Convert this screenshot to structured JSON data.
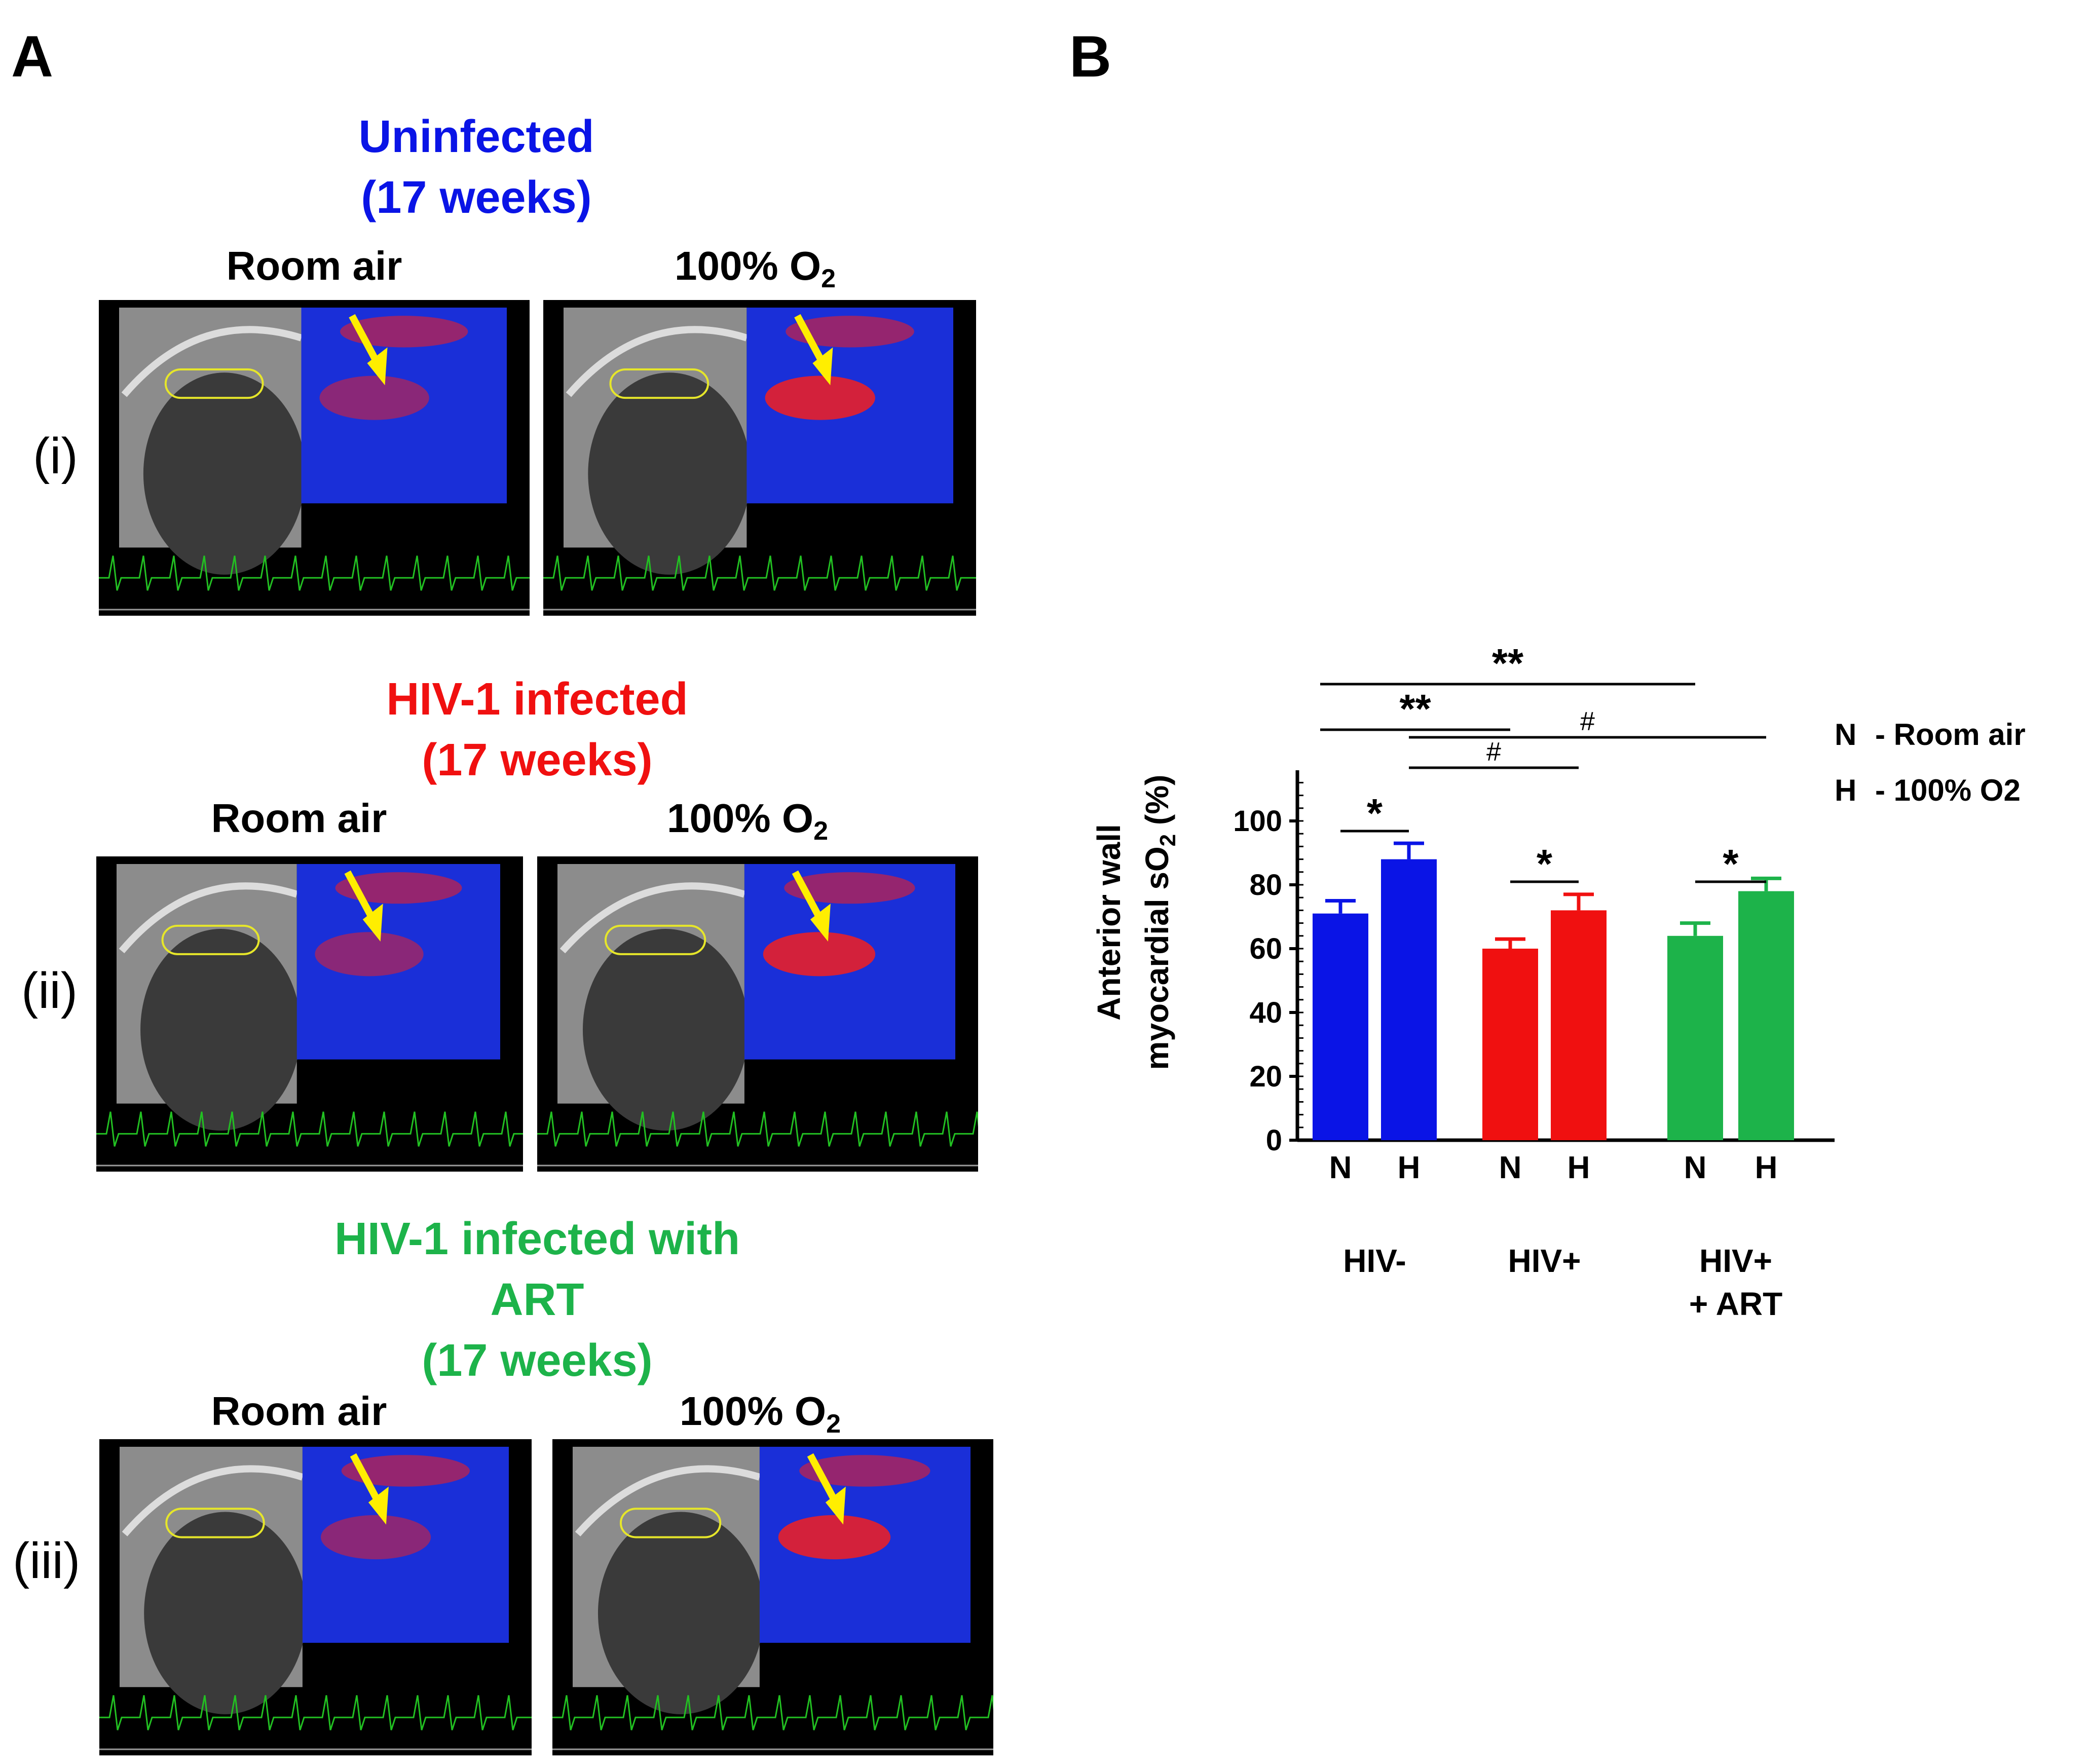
{
  "panelA": {
    "letter": "A",
    "groups": [
      {
        "title_line1": "Uninfected",
        "title_line2": "(17 weeks)",
        "title_line3": "",
        "color": "#0a14e6",
        "row_label": "(i)",
        "left_label": "Room air",
        "right_label_main": "100% O",
        "right_label_sub": "2"
      },
      {
        "title_line1": "HIV-1 infected",
        "title_line2": "(17 weeks)",
        "title_line3": "",
        "color": "#f01010",
        "row_label": "(ii)",
        "left_label": "Room air",
        "right_label_main": "100% O",
        "right_label_sub": "2"
      },
      {
        "title_line1": "HIV-1 infected with",
        "title_line2": "ART",
        "title_line3": "(17 weeks)",
        "color": "#1db34a",
        "row_label": "(iii)",
        "left_label": "Room air",
        "right_label_main": "100% O",
        "right_label_sub": "2"
      }
    ],
    "image_colors": {
      "background": "#000000",
      "ultrasound": "#8c8c8c",
      "oxygen_high": "#e8202a",
      "oxygen_low": "#1a2fd8",
      "roi_outline": "#e6e62a",
      "arrow": "#ffee00",
      "ecg": "#22c022"
    }
  },
  "panelB": {
    "letter": "B",
    "chart_data": {
      "type": "bar",
      "ylabel_line1": "Anterior wall",
      "ylabel_line2_main": "myocardial sO",
      "ylabel_line2_sub": "2",
      "ylabel_line2_tail": " (%)",
      "ylim": [
        0,
        100
      ],
      "yticks": [
        "0",
        "20",
        "40",
        "60",
        "80",
        "100"
      ],
      "categories": [
        "N",
        "H",
        "N",
        "H",
        "N",
        "H"
      ],
      "groups": [
        {
          "label_line1": "HIV-",
          "label_line2": "",
          "color": "#0a14e6"
        },
        {
          "label_line1": "HIV+",
          "label_line2": "",
          "color": "#f01010"
        },
        {
          "label_line1": "HIV+",
          "label_line2": "+ ART",
          "color": "#1db34a"
        }
      ],
      "values": [
        71,
        88,
        60,
        72,
        64,
        78
      ],
      "errors": [
        4,
        5,
        3,
        5,
        4,
        4
      ],
      "legend": [
        {
          "key": "N",
          "text": "- Room air"
        },
        {
          "key": "H",
          "text": "- 100% O2"
        }
      ],
      "significance": [
        {
          "from": 0,
          "to": 1,
          "label": "*"
        },
        {
          "from": 2,
          "to": 3,
          "label": "*"
        },
        {
          "from": 4,
          "to": 5,
          "label": "*"
        },
        {
          "from": 1,
          "to": 3,
          "label": "#"
        },
        {
          "from": 1,
          "to": 5,
          "label": "#"
        },
        {
          "from": 0,
          "to": 2,
          "label": "**"
        },
        {
          "from": 0,
          "to": 4,
          "label": "**"
        }
      ]
    }
  }
}
